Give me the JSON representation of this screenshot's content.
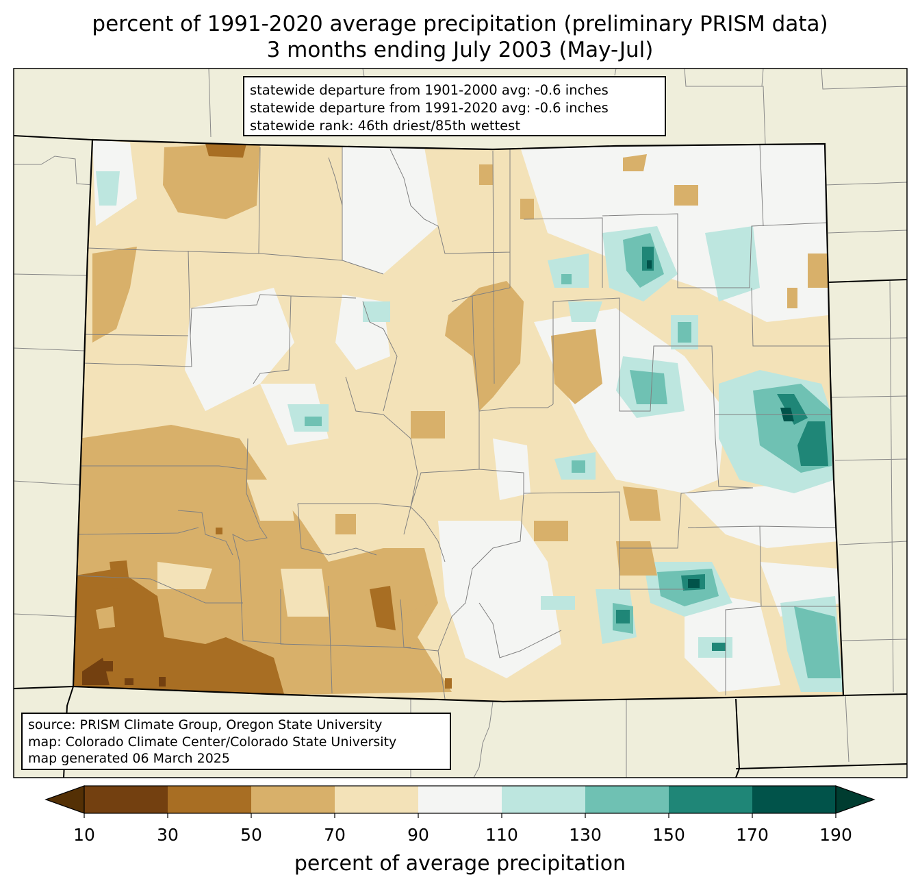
{
  "title_line1": "percent of 1991-2020 average precipitation (preliminary PRISM data)",
  "title_line2": "3 months ending July 2003 (May-Jul)",
  "stats": {
    "line1": "statewide departure from 1901-2000 avg: -0.6 inches",
    "line2": "statewide departure from 1991-2020 avg: -0.6 inches",
    "line3": "statewide rank: 46th driest/85th wettest"
  },
  "source": {
    "line1": "source: PRISM Climate Group, Oregon State University",
    "line2": "map: Colorado Climate Center/Colorado State University",
    "line3": "map generated 06 March 2025"
  },
  "colorbar": {
    "label": "percent of average precipitation",
    "ticks": [
      "10",
      "30",
      "50",
      "70",
      "90",
      "110",
      "130",
      "150",
      "170",
      "190"
    ],
    "colors": [
      "#734010",
      "#a86e23",
      "#d8b06a",
      "#f3e2b8",
      "#f4f5f3",
      "#bde6df",
      "#6fc1b3",
      "#1f8677",
      "#01534a"
    ],
    "under_color": "#543005",
    "over_color": "#003c30"
  },
  "map_colors": {
    "ocean_land_background": "#efeedb",
    "border": "#000000",
    "county_lines": "#888888"
  }
}
